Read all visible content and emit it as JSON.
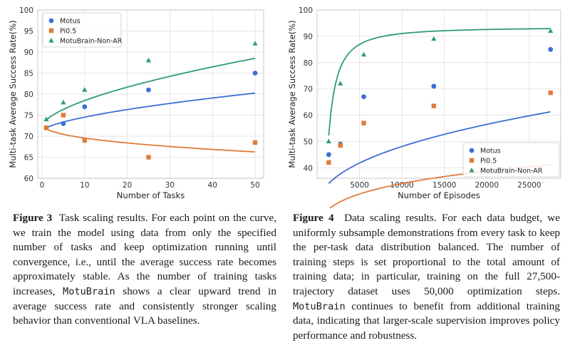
{
  "chart_data": [
    {
      "type": "scatter",
      "xlabel": "Number of Tasks",
      "ylabel": "Multi-task Average Success Rate(%)",
      "xlim": [
        -1,
        52
      ],
      "ylim": [
        60,
        100
      ],
      "xticks": [
        0,
        10,
        20,
        30,
        40,
        50
      ],
      "yticks": [
        60,
        65,
        70,
        75,
        80,
        85,
        90,
        95,
        100
      ],
      "grid": true,
      "legend": "top-left",
      "series": [
        {
          "name": "Motus",
          "marker": "circle",
          "color": "#3d6fd6",
          "x": [
            1,
            5,
            10,
            25,
            50
          ],
          "y": [
            72,
            73,
            77,
            81,
            85
          ],
          "fit": {
            "form": "a+b*x^c",
            "a": 71.2,
            "b": 0.8,
            "c": 0.62
          }
        },
        {
          "name": "Pi0.5",
          "marker": "square",
          "color": "#e07b39",
          "x": [
            1,
            5,
            10,
            25,
            50
          ],
          "y": [
            72,
            75,
            69,
            65,
            68.5
          ],
          "fit": {
            "form": "a+b*x^c",
            "a": 73.2,
            "b": -1.45,
            "c": 0.4
          }
        },
        {
          "name": "MotuBrain-Non-AR",
          "marker": "triangle",
          "color": "#2e9e6f",
          "x": [
            1,
            5,
            10,
            25,
            50
          ],
          "y": [
            74,
            78,
            81,
            88,
            92
          ],
          "fit": {
            "form": "a+b*x^c",
            "a": 72.3,
            "b": 1.55,
            "c": 0.6
          }
        }
      ]
    },
    {
      "type": "scatter",
      "xlabel": "Number of Episodes",
      "ylabel": "Multi-task Average Success Rate(%)",
      "xlim": [
        0,
        28700
      ],
      "ylim": [
        36,
        100
      ],
      "xticks": [
        5000,
        10000,
        15000,
        20000,
        25000
      ],
      "yticks": [
        40,
        50,
        60,
        70,
        80,
        90,
        100
      ],
      "grid": true,
      "legend": "bottom-right",
      "series": [
        {
          "name": "Motus",
          "marker": "circle",
          "color": "#3d6fd6",
          "x": [
            1375,
            2750,
            5500,
            13750,
            27500
          ],
          "y": [
            45,
            49,
            67,
            71,
            85
          ],
          "fit": {
            "form": "a+b*x^c",
            "a": 23.2,
            "b": 0.52,
            "c": 0.42
          }
        },
        {
          "name": "Pi0.5",
          "marker": "square",
          "color": "#e07b39",
          "x": [
            1375,
            2750,
            5500,
            13750,
            27500
          ],
          "y": [
            42,
            48.5,
            57,
            63.5,
            68.5
          ],
          "fit": {
            "form": "a+b*x^c",
            "a": 9.0,
            "b": 2.5,
            "c": 0.25
          }
        },
        {
          "name": "MotuBrain-Non-AR",
          "marker": "triangle",
          "color": "#2e9e6f",
          "x": [
            1375,
            2750,
            5500,
            13750,
            27500
          ],
          "y": [
            50,
            72,
            83,
            89,
            92
          ],
          "fit": {
            "form": "a-b*x^-c",
            "a": 93.5,
            "b": 1180000,
            "c": 1.42
          }
        }
      ]
    }
  ],
  "captions": {
    "fig3": {
      "label": "Figure 3",
      "p1": "Task scaling results. For each point on the curve, we train the model using data from only the specified number of tasks and keep optimization running until convergence, i.e., until the average success rate becomes approximately stable. As the number of training tasks increases, ",
      "code": "MotuBrain",
      "p2": " shows a clear upward trend in average success rate and consistently stronger scaling behavior than conventional VLA baselines."
    },
    "fig4": {
      "label": "Figure 4",
      "p1": "Data scaling results. For each data budget, we uniformly subsample demonstrations from every task to keep the per-task data distribution balanced. The number of training steps is set proportional to the total amount of training data; in particular, training on the full 27,500-trajectory dataset uses 50,000 optimization steps. ",
      "code": "MotuBrain",
      "p2": " continues to benefit from additional training data, indicating that larger-scale supervision improves policy performance and robustness."
    }
  }
}
